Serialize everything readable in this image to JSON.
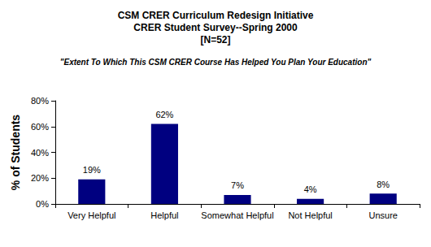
{
  "chart_data": {
    "type": "bar",
    "title": "CSM CRER Curriculum Redesign Initiative\nCRER Student Survey--Spring 2000\n[N=52]",
    "subtitle": "\"Extent To Which This CSM CRER Course Has Helped You Plan Your Education\"",
    "ylabel": "% of Students",
    "categories": [
      "Very Helpful",
      "Helpful",
      "Somewhat Helpful",
      "Not Helpful",
      "Unsure"
    ],
    "values": [
      19,
      62,
      7,
      4,
      8
    ],
    "value_labels": [
      "19%",
      "62%",
      "7%",
      "4%",
      "8%"
    ],
    "data_labels": true,
    "color": "#000080",
    "ylim": [
      0,
      80
    ],
    "yticks": [
      {
        "value": 0,
        "label": "0%"
      },
      {
        "value": 20,
        "label": "20%"
      },
      {
        "value": 40,
        "label": "40%"
      },
      {
        "value": 60,
        "label": "60%"
      },
      {
        "value": 80,
        "label": "80%"
      }
    ],
    "grid": false
  }
}
